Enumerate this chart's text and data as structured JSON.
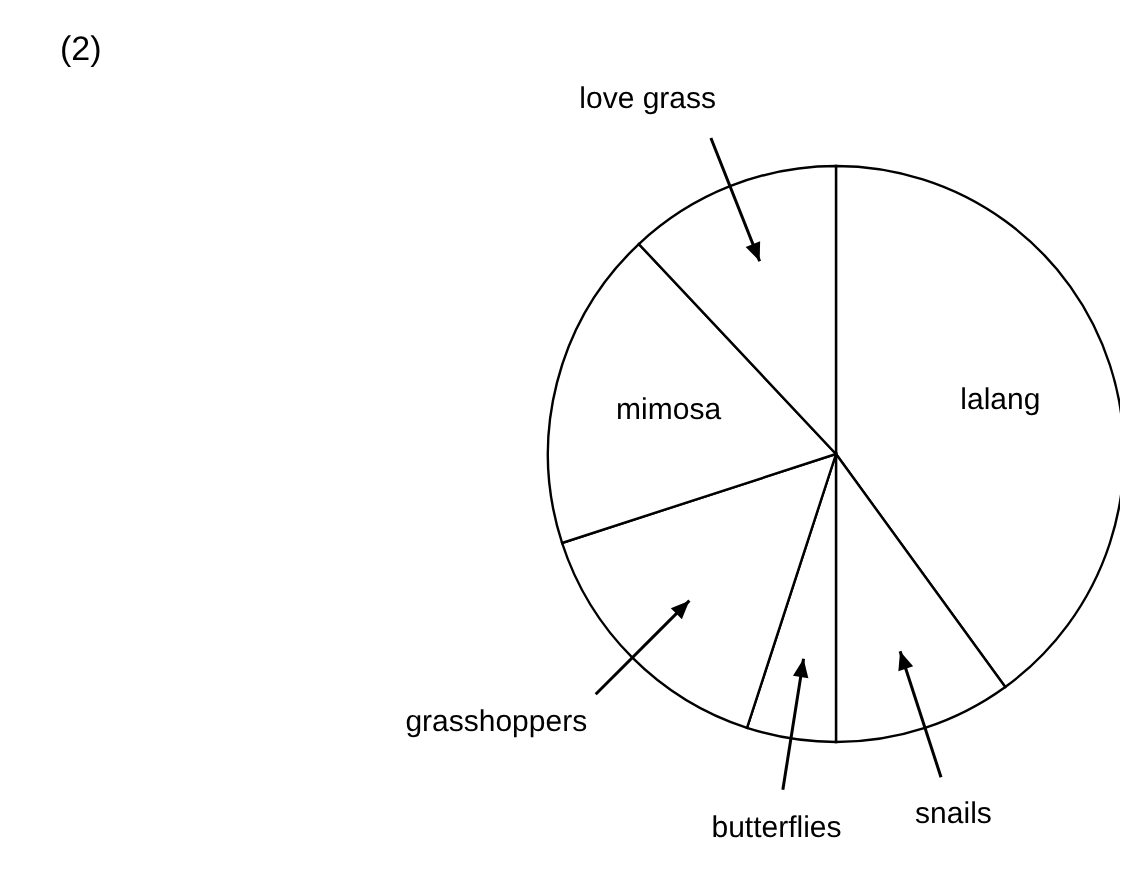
{
  "chart_data": {
    "type": "pie",
    "title": "(2)",
    "categories": [
      "lalang",
      "snails",
      "butterflies",
      "grasshoppers",
      "mimosa",
      "love grass"
    ],
    "values": [
      40,
      10,
      5,
      15,
      18,
      12
    ],
    "colors": [
      "#ffffff",
      "#ffffff",
      "#ffffff",
      "#ffffff",
      "#ffffff",
      "#ffffff"
    ]
  }
}
